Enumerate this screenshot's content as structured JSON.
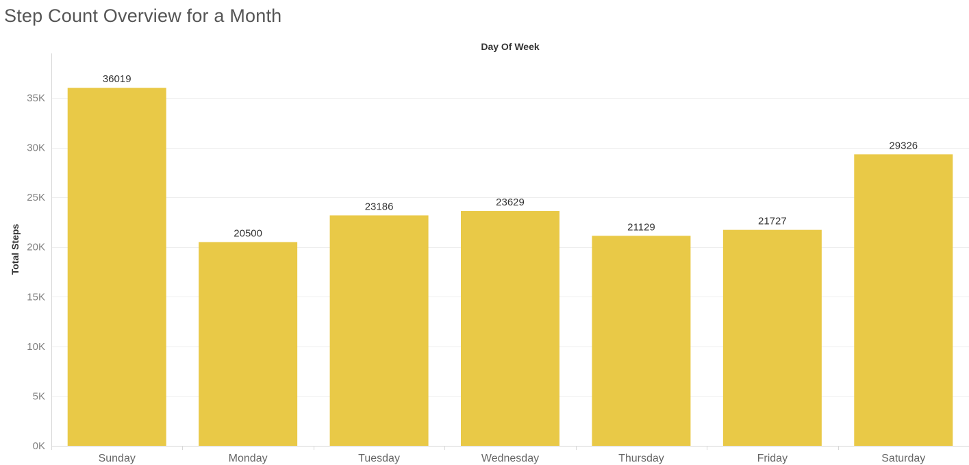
{
  "page": {
    "title": "Step Count Overview for a Month"
  },
  "colors": {
    "bar": "#E9C947",
    "grid": "#EEEEEE",
    "axis": "#D8D8D8"
  },
  "chart_data": {
    "type": "bar",
    "title": "Step Count Overview for a Month",
    "xlabel": "Day Of Week",
    "ylabel": "Total Steps",
    "categories": [
      "Sunday",
      "Monday",
      "Tuesday",
      "Wednesday",
      "Thursday",
      "Friday",
      "Saturday"
    ],
    "values": [
      36019,
      20500,
      23186,
      23629,
      21129,
      21727,
      29326
    ],
    "value_labels": [
      "36019",
      "20500",
      "23186",
      "23629",
      "21129",
      "21727",
      "29326"
    ],
    "ylim": [
      0,
      35000
    ],
    "yticks": [
      0,
      5000,
      10000,
      15000,
      20000,
      25000,
      30000,
      35000
    ],
    "ytick_labels": [
      "0K",
      "5K",
      "10K",
      "15K",
      "20K",
      "25K",
      "30K",
      "35K"
    ],
    "xlabel_position": "top",
    "grid": true,
    "legend": "none"
  }
}
